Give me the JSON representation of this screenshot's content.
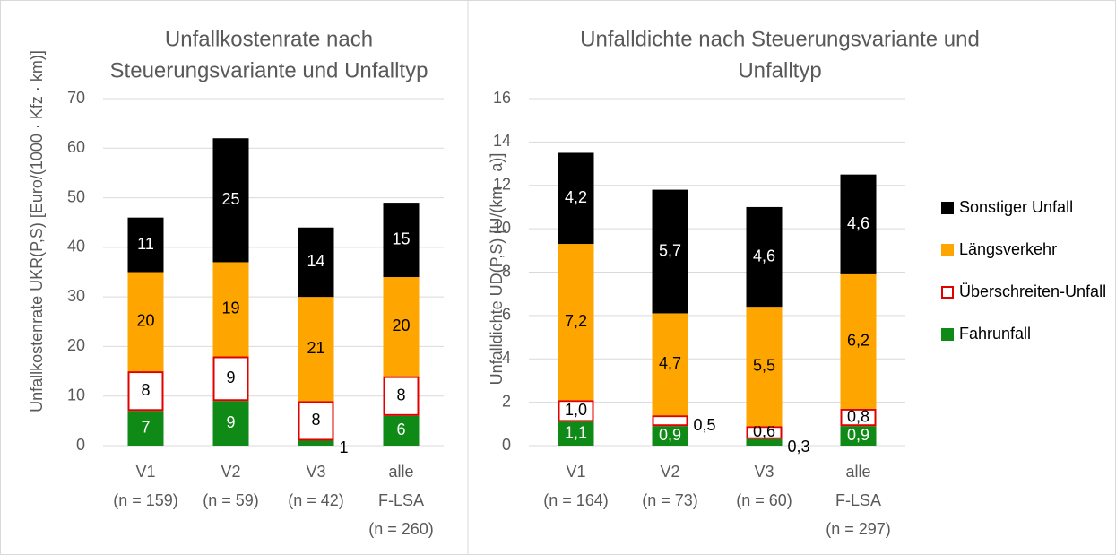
{
  "chart_data": [
    {
      "type": "stacked_bar",
      "title": [
        "Unfallkostenrate nach",
        "Steuerungsvariante und Unfalltyp"
      ],
      "ylabel": "Unfallkostenrate UKR(P,S) [Euro/(1000 · Kfz · km)]",
      "categories": [
        [
          "V1",
          "(n = 159)"
        ],
        [
          "V2",
          "(n = 59)"
        ],
        [
          "V3",
          "(n = 42)"
        ],
        [
          "alle",
          "F-LSA",
          "(n = 260)"
        ]
      ],
      "ylim": [
        0,
        70
      ],
      "yticks": [
        0,
        10,
        20,
        30,
        40,
        50,
        60,
        70
      ],
      "grid": true,
      "legend": false,
      "series": [
        {
          "color": "#0f8a16",
          "values": [
            7,
            9,
            1,
            6
          ]
        },
        {
          "color": "#e00000",
          "outline": true,
          "values": [
            8,
            9,
            8,
            8
          ]
        },
        {
          "color": "#ffa500",
          "values": [
            20,
            19,
            21,
            20
          ]
        },
        {
          "color": "#000000",
          "values": [
            11,
            25,
            14,
            15
          ]
        }
      ]
    },
    {
      "type": "stacked_bar",
      "title": [
        "Unfalldichte nach Steuerungsvariante und",
        "Unfalltyp"
      ],
      "ylabel": "Unfalldichte UD(P,S) [U/(km · a)]",
      "categories": [
        [
          "V1",
          "(n = 164)"
        ],
        [
          "V2",
          "(n = 73)"
        ],
        [
          "V3",
          "(n = 60)"
        ],
        [
          "alle",
          "F-LSA",
          "(n = 297)"
        ]
      ],
      "ylim": [
        0,
        16
      ],
      "yticks": [
        0,
        2,
        4,
        6,
        8,
        10,
        12,
        14,
        16
      ],
      "grid": true,
      "legend": "right",
      "series": [
        {
          "name": "Fahrunfall",
          "color": "#0f8a16",
          "values": [
            1.1,
            0.9,
            0.3,
            0.9
          ],
          "value_labels": [
            "1,1",
            "0,9",
            "0,3",
            "0,9"
          ]
        },
        {
          "name": "Überschreiten-Unfall",
          "color": "#e00000",
          "outline": true,
          "values": [
            1.0,
            0.5,
            0.6,
            0.8
          ],
          "value_labels": [
            "1,0",
            "0,5",
            "0,6",
            "0,8"
          ]
        },
        {
          "name": "Längsverkehr",
          "color": "#ffa500",
          "values": [
            7.2,
            4.7,
            5.5,
            6.2
          ],
          "value_labels": [
            "7,2",
            "4,7",
            "5,5",
            "6,2"
          ]
        },
        {
          "name": "Sonstiger Unfall",
          "color": "#000000",
          "values": [
            4.2,
            5.7,
            4.6,
            4.6
          ],
          "value_labels": [
            "4,2",
            "5,7",
            "4,6",
            "4,6"
          ]
        }
      ]
    }
  ]
}
